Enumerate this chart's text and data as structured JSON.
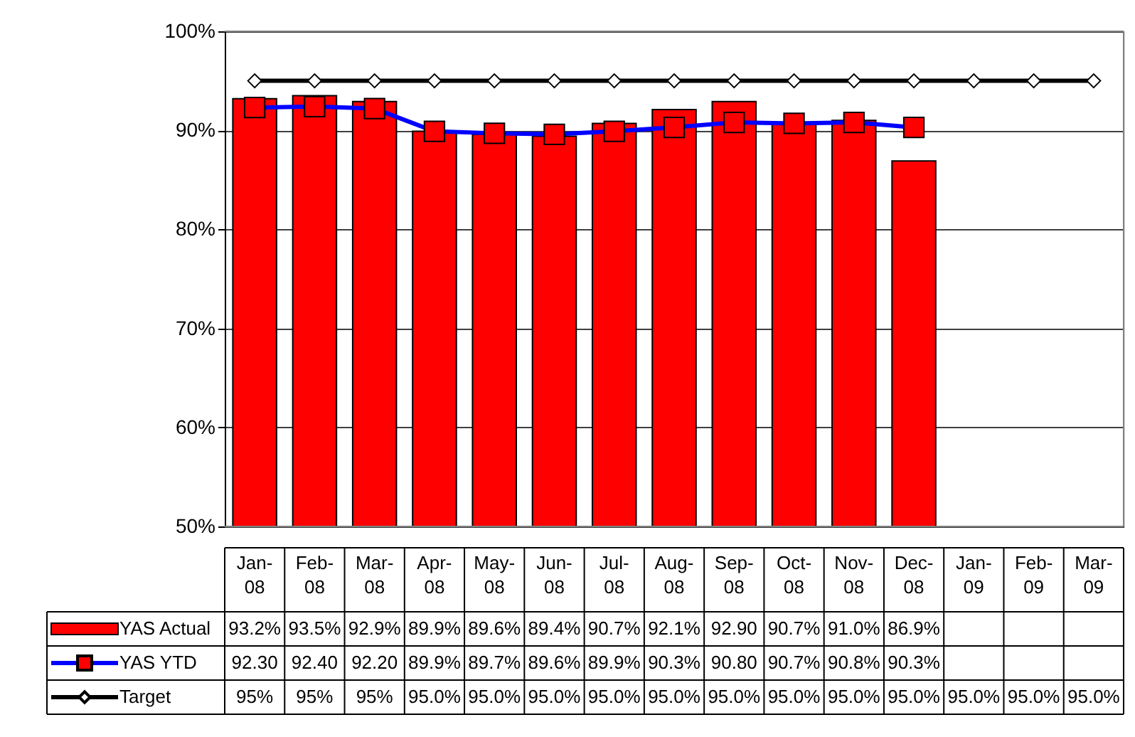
{
  "chart_data": {
    "type": "bar",
    "categories": [
      "Jan-08",
      "Feb-08",
      "Mar-08",
      "Apr-08",
      "May-08",
      "Jun-08",
      "Jul-08",
      "Aug-08",
      "Sep-08",
      "Oct-08",
      "Nov-08",
      "Dec-08",
      "Jan-09",
      "Feb-09",
      "Mar-09"
    ],
    "ylim": [
      50,
      100
    ],
    "yticks": [
      {
        "value": 50,
        "label": "50%"
      },
      {
        "value": 60,
        "label": "60%"
      },
      {
        "value": 70,
        "label": "70%"
      },
      {
        "value": 80,
        "label": "80%"
      },
      {
        "value": 90,
        "label": "90%"
      },
      {
        "value": 100,
        "label": "100%"
      }
    ],
    "grid": "y",
    "legend": "bottom left",
    "series": [
      {
        "name": "YAS Actual",
        "color": "#ff0000",
        "values": [
          93.2,
          93.5,
          92.9,
          89.9,
          89.6,
          89.4,
          90.7,
          92.1,
          92.9,
          90.7,
          91.0,
          86.9,
          null,
          null,
          null
        ],
        "value_labels": [
          "93.2%",
          "93.5%",
          "92.9%",
          "89.9%",
          "89.6%",
          "89.4%",
          "90.7%",
          "92.1%",
          "92.90",
          "90.7%",
          "91.0%",
          "86.9%",
          null,
          null,
          null
        ]
      },
      {
        "name": "YAS YTD",
        "type": "line",
        "color": "#0000ff",
        "marker": "square",
        "values": [
          92.3,
          92.4,
          92.2,
          89.9,
          89.7,
          89.6,
          89.9,
          90.3,
          90.8,
          90.7,
          90.8,
          90.3,
          null,
          null,
          null
        ],
        "value_labels": [
          "92.30",
          "92.40",
          "92.20",
          "89.9%",
          "89.7%",
          "89.6%",
          "89.9%",
          "90.3%",
          "90.80",
          "90.7%",
          "90.8%",
          "90.3%",
          null,
          null,
          null
        ]
      },
      {
        "name": "Target",
        "type": "line",
        "color": "#000000",
        "marker": "diamond",
        "values": [
          95,
          95,
          95,
          95.0,
          95.0,
          95.0,
          95.0,
          95.0,
          95.0,
          95.0,
          95.0,
          95.0,
          95.0,
          95.0,
          95.0
        ],
        "value_labels": [
          "95%",
          "95%",
          "95%",
          "95.0%",
          "95.0%",
          "95.0%",
          "95.0%",
          "95.0%",
          "95.0%",
          "95.0%",
          "95.0%",
          "95.0%",
          "95.0%",
          "95.0%",
          "95.0%"
        ]
      }
    ]
  }
}
